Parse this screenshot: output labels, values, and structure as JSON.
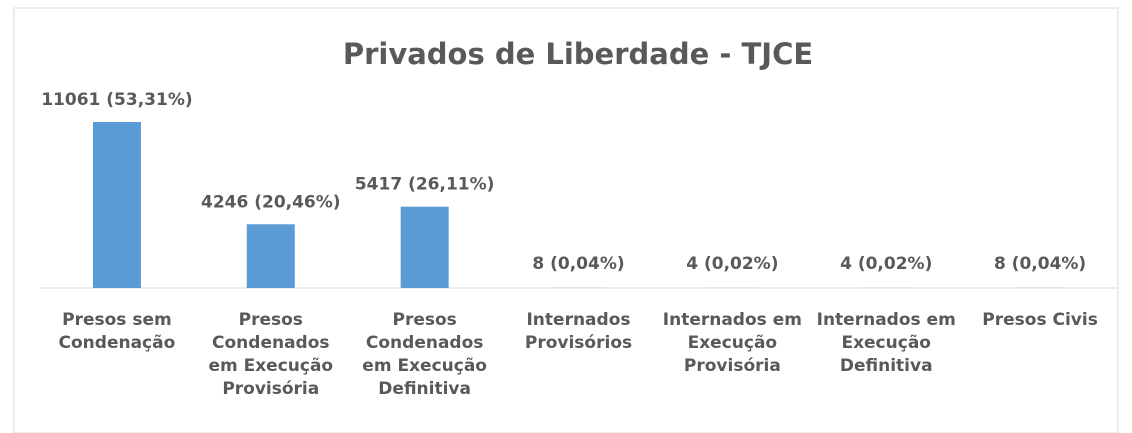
{
  "chart_data": {
    "type": "bar",
    "title": "Privados de Liberdade - TJCE",
    "categories": [
      "Presos sem Condenação",
      "Presos Condenados em Execução Provisória",
      "Presos Condenados em Execução Definitiva",
      "Internados Provisórios",
      "Internados em Execução Provisória",
      "Internados em Execução Definitiva",
      "Presos Civis"
    ],
    "values": [
      11061,
      4246,
      5417,
      8,
      4,
      4,
      8
    ],
    "value_labels": [
      "11061 (53,31%)",
      "4246 (20,46%)",
      "5417 (26,11%)",
      "8 (0,04%)",
      "4 (0,02%)",
      "4 (0,02%)",
      "8 (0,04%)"
    ],
    "color": "#5b9bd5"
  }
}
